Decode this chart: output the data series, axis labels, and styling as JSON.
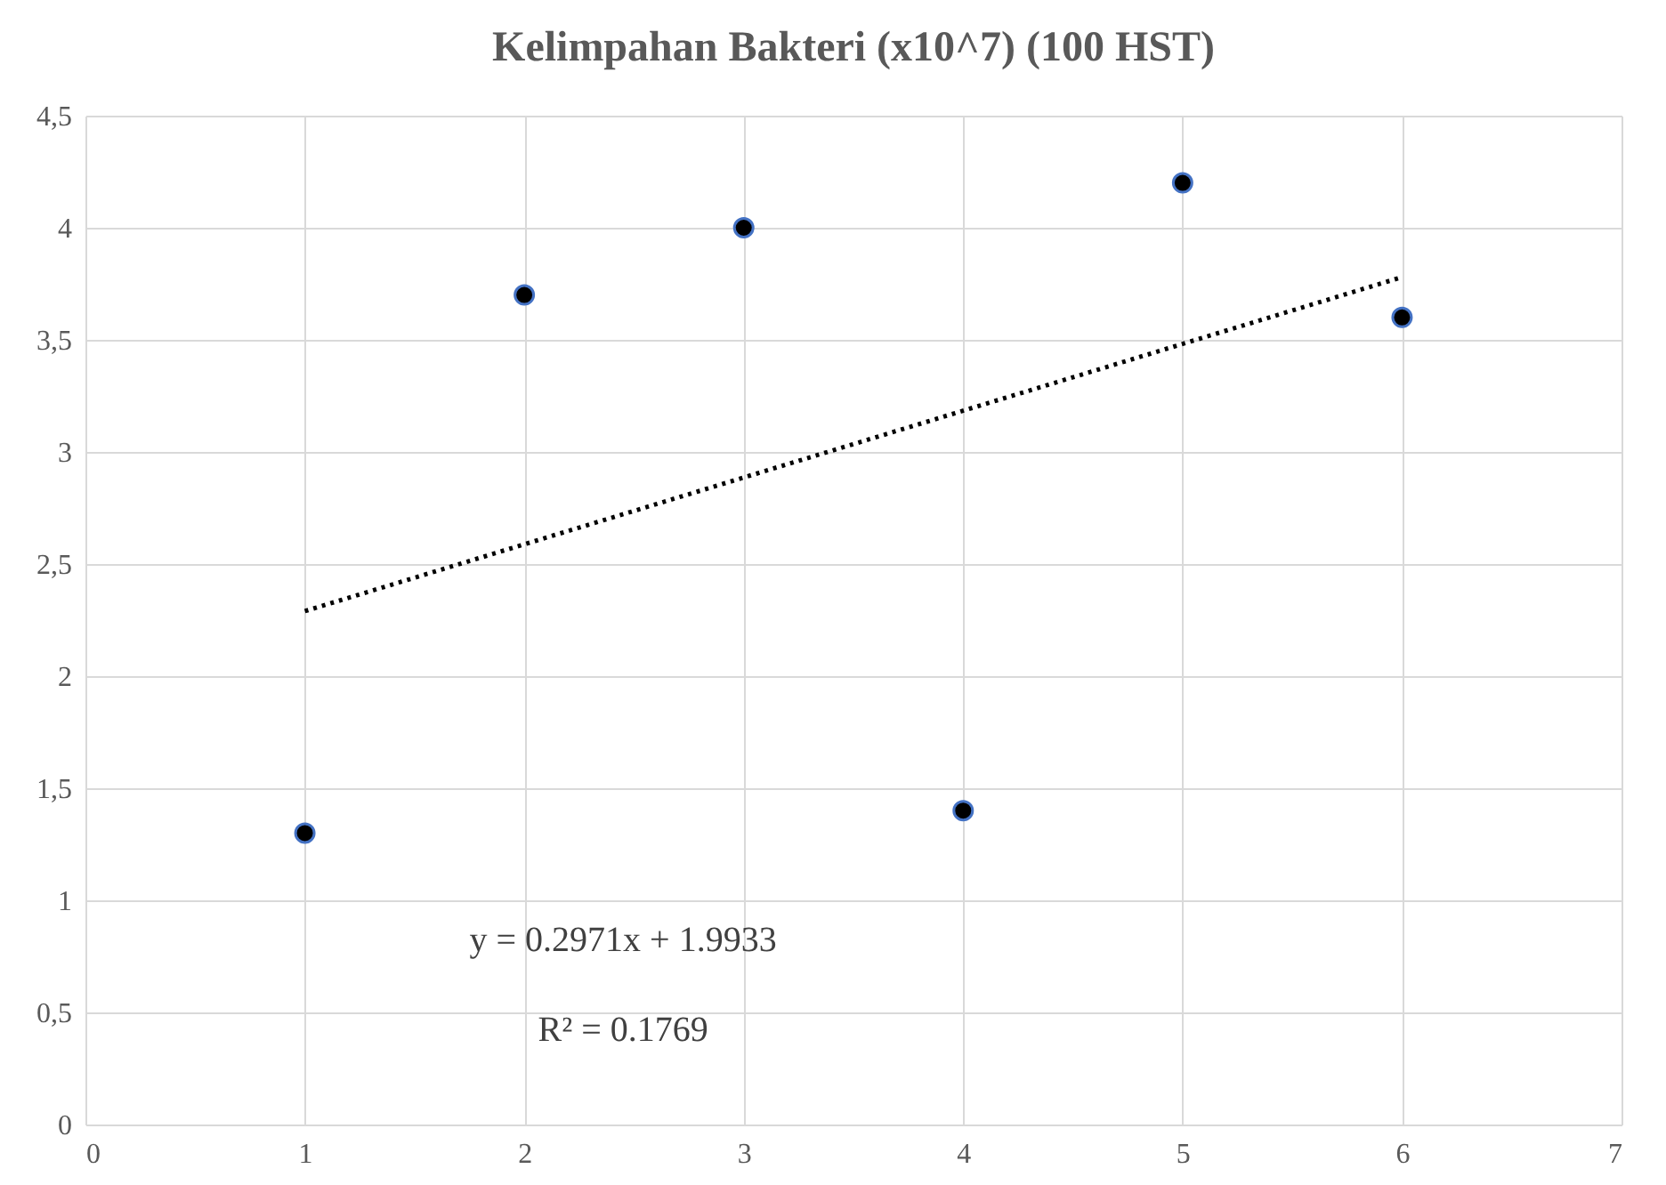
{
  "chart_data": {
    "type": "scatter",
    "title": "Kelimpahan Bakteri (x10^7) (100 HST)",
    "series": [
      {
        "color": "#000000",
        "marker": "circle",
        "x": [
          1,
          2,
          3,
          4,
          5,
          6
        ],
        "values": [
          1.3,
          3.7,
          4.0,
          1.4,
          4.2,
          3.6
        ]
      },
      {
        "type": "line",
        "color": "#000000",
        "line_style": "dotted",
        "x": [
          1,
          6
        ],
        "values": [
          2.29,
          3.78
        ]
      }
    ],
    "xlim": [
      0,
      7
    ],
    "xticks": [
      0,
      1,
      2,
      3,
      4,
      5,
      6,
      7
    ],
    "ylim": [
      0,
      4.5
    ],
    "yticks": [
      0,
      {
        "value": 0.5,
        "label": "0,5"
      },
      1,
      {
        "value": 1.5,
        "label": "1,5"
      },
      2,
      {
        "value": 2.5,
        "label": "2,5"
      },
      3,
      {
        "value": 3.5,
        "label": "3,5"
      },
      4,
      {
        "value": 4.5,
        "label": "4,5"
      }
    ],
    "annotations": [
      "y = 0.2971x + 1.9933",
      "R² = 0.1769"
    ],
    "grid": true
  }
}
